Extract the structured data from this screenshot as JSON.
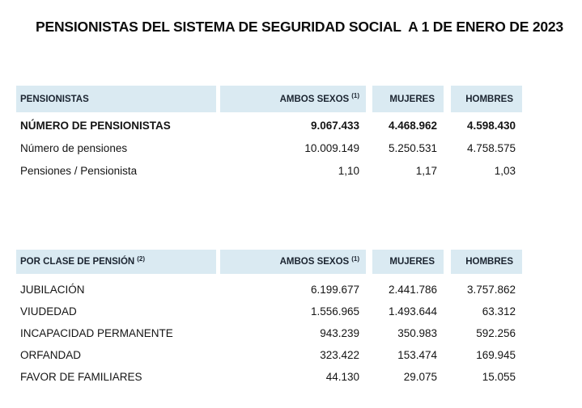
{
  "page": {
    "title": "PENSIONISTAS DEL SISTEMA DE SEGURIDAD SOCIAL  A 1 DE ENERO DE 2023"
  },
  "colors": {
    "header_bg": "#daeaf2",
    "header_text": "#1b2430",
    "body_text": "#141414"
  },
  "tables": [
    {
      "name": "pensionistas",
      "header": {
        "label": "PENSIONISTAS",
        "label_sup": "",
        "columns": [
          {
            "label": "AMBOS SEXOS",
            "sup": "(1)"
          },
          {
            "label": "MUJERES",
            "sup": ""
          },
          {
            "label": "HOMBRES",
            "sup": ""
          }
        ]
      },
      "rows": [
        {
          "label": "NÚMERO DE PENSIONISTAS",
          "bold": true,
          "values": [
            "9.067.433",
            "4.468.962",
            "4.598.430"
          ]
        },
        {
          "label": "Número de pensiones",
          "bold": false,
          "values": [
            "10.009.149",
            "5.250.531",
            "4.758.575"
          ]
        },
        {
          "label": "Pensiones / Pensionista",
          "bold": false,
          "values": [
            "1,10",
            "1,17",
            "1,03"
          ]
        }
      ]
    },
    {
      "name": "por-clase-de-pension",
      "header": {
        "label": "POR CLASE DE PENSIÓN",
        "label_sup": "(2)",
        "columns": [
          {
            "label": "AMBOS SEXOS",
            "sup": "(1)"
          },
          {
            "label": "MUJERES",
            "sup": ""
          },
          {
            "label": "HOMBRES",
            "sup": ""
          }
        ]
      },
      "rows": [
        {
          "label": "JUBILACIÓN",
          "bold": false,
          "values": [
            "6.199.677",
            "2.441.786",
            "3.757.862"
          ]
        },
        {
          "label": "VIUDEDAD",
          "bold": false,
          "values": [
            "1.556.965",
            "1.493.644",
            "63.312"
          ]
        },
        {
          "label": "INCAPACIDAD PERMANENTE",
          "bold": false,
          "values": [
            "943.239",
            "350.983",
            "592.256"
          ]
        },
        {
          "label": "ORFANDAD",
          "bold": false,
          "values": [
            "323.422",
            "153.474",
            "169.945"
          ]
        },
        {
          "label": "FAVOR DE FAMILIARES",
          "bold": false,
          "values": [
            "44.130",
            "29.075",
            "15.055"
          ]
        }
      ]
    }
  ]
}
